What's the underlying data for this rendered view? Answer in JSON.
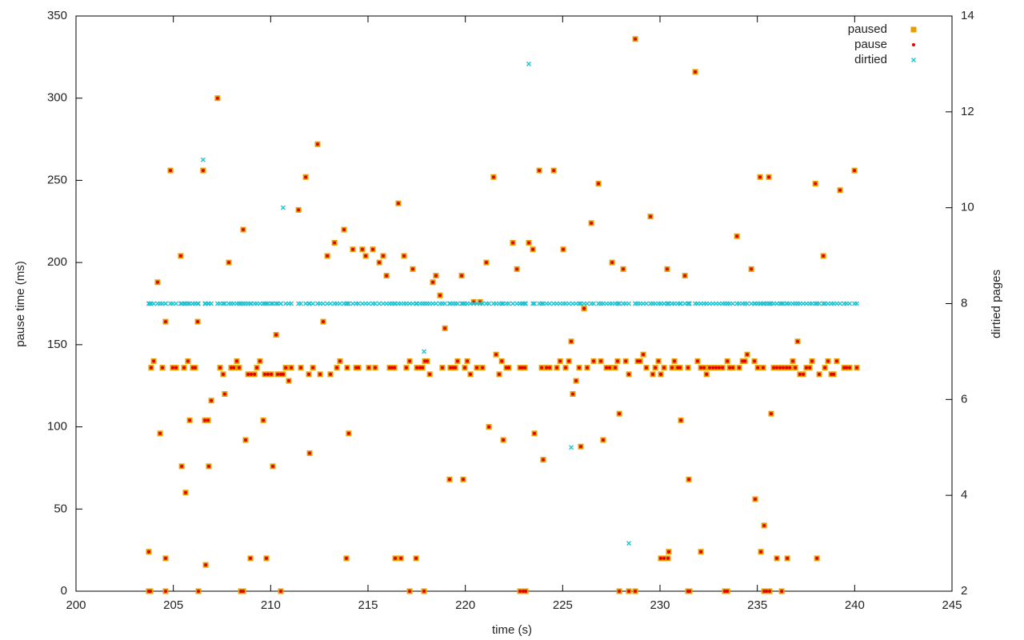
{
  "chart_data": {
    "type": "scatter",
    "xlabel": "time (s)",
    "ylabel": "pause time (ms)",
    "y2label": "dirtied pages",
    "xlim": [
      200,
      245
    ],
    "xticks": [
      200,
      205,
      210,
      215,
      220,
      225,
      230,
      235,
      240,
      245
    ],
    "ylim": [
      0,
      350
    ],
    "yticks": [
      0,
      50,
      100,
      150,
      200,
      250,
      300,
      350
    ],
    "y2lim": [
      2,
      14
    ],
    "y2ticks": [
      2,
      4,
      6,
      8,
      10,
      12,
      14
    ],
    "legend": "top-right",
    "x": [
      203.74,
      203.74,
      203.82,
      203.86,
      203.99,
      204.19,
      204.32,
      204.44,
      204.6,
      204.6,
      204.6,
      204.85,
      204.97,
      205.14,
      205.38,
      205.43,
      205.55,
      205.63,
      205.75,
      205.84,
      206.0,
      206.12,
      206.25,
      206.29,
      206.53,
      206.62,
      206.66,
      206.78,
      206.82,
      206.95,
      207.27,
      207.4,
      207.56,
      207.64,
      207.85,
      207.97,
      208.1,
      208.26,
      208.38,
      208.47,
      208.59,
      208.59,
      208.71,
      208.84,
      208.96,
      209.0,
      209.17,
      209.29,
      209.45,
      209.62,
      209.7,
      209.78,
      209.86,
      210.03,
      210.11,
      210.28,
      210.36,
      210.52,
      210.52,
      210.64,
      210.77,
      210.93,
      211.06,
      211.43,
      211.55,
      211.8,
      211.96,
      212.0,
      212.17,
      212.41,
      212.54,
      212.7,
      212.91,
      213.07,
      213.28,
      213.4,
      213.56,
      213.77,
      213.89,
      213.93,
      214.01,
      214.22,
      214.39,
      214.51,
      214.71,
      214.88,
      215.04,
      215.25,
      215.37,
      215.58,
      215.78,
      215.95,
      216.11,
      216.23,
      216.36,
      216.4,
      216.56,
      216.69,
      216.85,
      216.97,
      217.14,
      217.14,
      217.3,
      217.47,
      217.51,
      217.67,
      217.8,
      217.88,
      217.92,
      218.04,
      218.17,
      218.33,
      218.49,
      218.7,
      218.82,
      218.95,
      219.19,
      219.23,
      219.36,
      219.48,
      219.6,
      219.81,
      219.89,
      219.97,
      220.1,
      220.26,
      220.43,
      220.59,
      220.76,
      220.88,
      221.08,
      221.21,
      221.45,
      221.58,
      221.74,
      221.87,
      221.95,
      222.11,
      222.23,
      222.44,
      222.65,
      222.81,
      222.81,
      222.93,
      222.97,
      223.06,
      223.1,
      223.26,
      223.47,
      223.55,
      223.8,
      223.92,
      224.0,
      224.17,
      224.33,
      224.54,
      224.7,
      224.87,
      225.03,
      225.15,
      225.32,
      225.44,
      225.52,
      225.69,
      225.85,
      225.93,
      226.1,
      226.26,
      226.47,
      226.59,
      226.84,
      226.96,
      227.08,
      227.25,
      227.41,
      227.54,
      227.7,
      227.82,
      227.91,
      227.91,
      228.11,
      228.24,
      228.4,
      228.4,
      228.73,
      228.73,
      228.85,
      228.98,
      229.14,
      229.3,
      229.51,
      229.63,
      229.76,
      229.92,
      230.04,
      230.04,
      230.21,
      230.21,
      230.37,
      230.41,
      230.45,
      230.62,
      230.74,
      230.91,
      231.03,
      231.07,
      231.28,
      231.44,
      231.44,
      231.48,
      231.52,
      231.81,
      231.93,
      232.1,
      232.1,
      232.26,
      232.39,
      232.55,
      232.72,
      232.88,
      233.04,
      233.21,
      233.33,
      233.46,
      233.46,
      233.58,
      233.74,
      233.95,
      234.07,
      234.24,
      234.36,
      234.48,
      234.69,
      234.85,
      234.89,
      235.02,
      235.14,
      235.18,
      235.3,
      235.35,
      235.35,
      235.47,
      235.59,
      235.63,
      235.71,
      235.84,
      236.0,
      236.0,
      236.17,
      236.25,
      236.33,
      236.5,
      236.54,
      236.66,
      236.82,
      236.95,
      237.07,
      237.19,
      237.36,
      237.52,
      237.69,
      237.81,
      237.98,
      238.06,
      238.18,
      238.39,
      238.47,
      238.63,
      238.8,
      238.92,
      239.08,
      239.25,
      239.46,
      239.58,
      239.74,
      239.99,
      240.11
    ],
    "series": [
      {
        "name": "paused",
        "color": "#e69f00",
        "marker": "square",
        "values": [
          24,
          0,
          0,
          136,
          140,
          188,
          96,
          136,
          164,
          20,
          0,
          256,
          136,
          136,
          204,
          76,
          136,
          60,
          140,
          104,
          136,
          136,
          164,
          0,
          256,
          104,
          16,
          104,
          76,
          116,
          300,
          136,
          132,
          120,
          200,
          136,
          136,
          140,
          136,
          0,
          0,
          220,
          92,
          132,
          20,
          132,
          132,
          136,
          140,
          104,
          132,
          20,
          132,
          132,
          76,
          156,
          132,
          132,
          0,
          132,
          136,
          128,
          136,
          232,
          136,
          252,
          132,
          84,
          136,
          272,
          132,
          164,
          204,
          132,
          212,
          136,
          140,
          220,
          20,
          136,
          96,
          208,
          136,
          136,
          208,
          204,
          136,
          208,
          136,
          200,
          204,
          192,
          136,
          136,
          136,
          20,
          236,
          20,
          204,
          136,
          140,
          0,
          196,
          20,
          136,
          136,
          136,
          0,
          140,
          140,
          132,
          188,
          192,
          180,
          136,
          160,
          68,
          136,
          136,
          136,
          140,
          192,
          68,
          136,
          140,
          132,
          176,
          136,
          176,
          136,
          200,
          100,
          252,
          144,
          132,
          140,
          92,
          136,
          136,
          212,
          196,
          136,
          0,
          136,
          0,
          136,
          0,
          212,
          208,
          96,
          256,
          136,
          80,
          136,
          136,
          256,
          136,
          140,
          208,
          136,
          140,
          152,
          120,
          128,
          136,
          88,
          172,
          136,
          224,
          140,
          248,
          140,
          92,
          136,
          136,
          200,
          136,
          140,
          108,
          0,
          196,
          140,
          132,
          0,
          336,
          0,
          140,
          140,
          144,
          136,
          228,
          132,
          136,
          140,
          132,
          20,
          136,
          20,
          196,
          20,
          24,
          136,
          140,
          136,
          136,
          104,
          192,
          136,
          0,
          68,
          0,
          316,
          140,
          24,
          136,
          136,
          132,
          136,
          136,
          136,
          136,
          136,
          0,
          0,
          140,
          136,
          136,
          216,
          136,
          140,
          140,
          144,
          196,
          140,
          56,
          136,
          252,
          24,
          136,
          40,
          0,
          0,
          252,
          0,
          108,
          136,
          136,
          20,
          136,
          0,
          136,
          136,
          20,
          136,
          140,
          136,
          152,
          132,
          132,
          136,
          136,
          140,
          248,
          20,
          132,
          204,
          136,
          140,
          132,
          132,
          140,
          244,
          136,
          136,
          136,
          256,
          136
        ]
      },
      {
        "name": "pause",
        "color": "#e00000",
        "marker": "circle",
        "values": [
          24,
          0,
          0,
          136,
          140,
          188,
          96,
          136,
          164,
          20,
          0,
          256,
          136,
          136,
          204,
          76,
          136,
          60,
          140,
          104,
          136,
          136,
          164,
          0,
          256,
          104,
          16,
          104,
          76,
          116,
          300,
          136,
          132,
          120,
          200,
          136,
          136,
          140,
          136,
          0,
          0,
          220,
          92,
          132,
          20,
          132,
          132,
          136,
          140,
          104,
          132,
          20,
          132,
          132,
          76,
          156,
          132,
          132,
          0,
          132,
          136,
          128,
          136,
          232,
          136,
          252,
          132,
          84,
          136,
          272,
          132,
          164,
          204,
          132,
          212,
          136,
          140,
          220,
          20,
          136,
          96,
          208,
          136,
          136,
          208,
          204,
          136,
          208,
          136,
          200,
          204,
          192,
          136,
          136,
          136,
          20,
          236,
          20,
          204,
          136,
          140,
          0,
          196,
          20,
          136,
          136,
          136,
          0,
          140,
          140,
          132,
          188,
          192,
          180,
          136,
          160,
          68,
          136,
          136,
          136,
          140,
          192,
          68,
          136,
          140,
          132,
          176,
          136,
          176,
          136,
          200,
          100,
          252,
          144,
          132,
          140,
          92,
          136,
          136,
          212,
          196,
          136,
          0,
          136,
          0,
          136,
          0,
          212,
          208,
          96,
          256,
          136,
          80,
          136,
          136,
          256,
          136,
          140,
          208,
          136,
          140,
          152,
          120,
          128,
          136,
          88,
          172,
          136,
          224,
          140,
          248,
          140,
          92,
          136,
          136,
          200,
          136,
          140,
          108,
          0,
          196,
          140,
          132,
          0,
          336,
          0,
          140,
          140,
          144,
          136,
          228,
          132,
          136,
          140,
          132,
          20,
          136,
          20,
          196,
          20,
          24,
          136,
          140,
          136,
          136,
          104,
          192,
          136,
          0,
          68,
          0,
          316,
          140,
          24,
          136,
          136,
          132,
          136,
          136,
          136,
          136,
          136,
          0,
          0,
          140,
          136,
          136,
          216,
          136,
          140,
          140,
          144,
          196,
          140,
          56,
          136,
          252,
          24,
          136,
          40,
          0,
          0,
          252,
          0,
          108,
          136,
          136,
          20,
          136,
          0,
          136,
          136,
          20,
          136,
          140,
          136,
          152,
          132,
          132,
          136,
          136,
          140,
          248,
          20,
          132,
          204,
          136,
          140,
          132,
          132,
          140,
          244,
          136,
          136,
          136,
          256,
          136
        ]
      },
      {
        "name": "dirtied",
        "color": "#1cc3d2",
        "marker": "cross",
        "axis": "y2",
        "values": [
          8,
          8,
          8,
          8,
          8,
          8,
          8,
          8,
          8,
          8,
          8,
          8,
          8,
          8,
          8,
          8,
          8,
          8,
          8,
          8,
          8,
          8,
          8,
          8,
          11,
          8,
          8,
          8,
          8,
          8,
          8,
          8,
          8,
          8,
          8,
          8,
          8,
          8,
          8,
          8,
          8,
          8,
          8,
          8,
          8,
          8,
          8,
          8,
          8,
          8,
          8,
          8,
          8,
          8,
          8,
          8,
          8,
          8,
          8,
          10,
          8,
          8,
          8,
          8,
          8,
          8,
          8,
          8,
          8,
          8,
          8,
          8,
          8,
          8,
          8,
          8,
          8,
          8,
          8,
          8,
          8,
          8,
          8,
          8,
          8,
          8,
          8,
          8,
          8,
          8,
          8,
          8,
          8,
          8,
          8,
          8,
          8,
          8,
          8,
          8,
          8,
          8,
          8,
          8,
          8,
          8,
          8,
          7,
          8,
          8,
          8,
          8,
          8,
          8,
          8,
          8,
          8,
          8,
          8,
          8,
          8,
          8,
          8,
          8,
          8,
          8,
          8,
          8,
          8,
          8,
          8,
          8,
          8,
          8,
          8,
          8,
          8,
          8,
          8,
          8,
          8,
          8,
          8,
          8,
          8,
          8,
          8,
          13,
          8,
          8,
          8,
          8,
          8,
          8,
          8,
          8,
          8,
          8,
          8,
          8,
          8,
          5,
          8,
          8,
          8,
          8,
          8,
          8,
          8,
          8,
          8,
          8,
          8,
          8,
          8,
          8,
          8,
          8,
          8,
          8,
          8,
          8,
          8,
          3,
          8,
          8,
          8,
          8,
          8,
          8,
          8,
          8,
          8,
          8,
          8,
          8,
          8,
          8,
          8,
          8,
          8,
          8,
          8,
          8,
          8,
          8,
          8,
          8,
          8,
          8,
          8,
          8,
          8,
          8,
          8,
          8,
          8,
          8,
          8,
          8,
          8,
          8,
          8,
          8,
          8,
          8,
          8,
          8,
          8,
          8,
          8,
          8,
          8,
          8,
          8,
          8,
          8,
          8,
          8,
          8,
          8,
          8,
          8,
          8,
          8,
          8,
          8,
          8,
          8,
          8,
          8,
          8,
          8,
          8,
          8,
          8,
          8,
          8,
          8,
          8,
          8,
          8,
          8,
          8,
          8,
          8,
          8,
          8,
          8,
          8,
          8,
          8,
          8,
          8,
          8,
          8,
          8
        ]
      }
    ]
  }
}
